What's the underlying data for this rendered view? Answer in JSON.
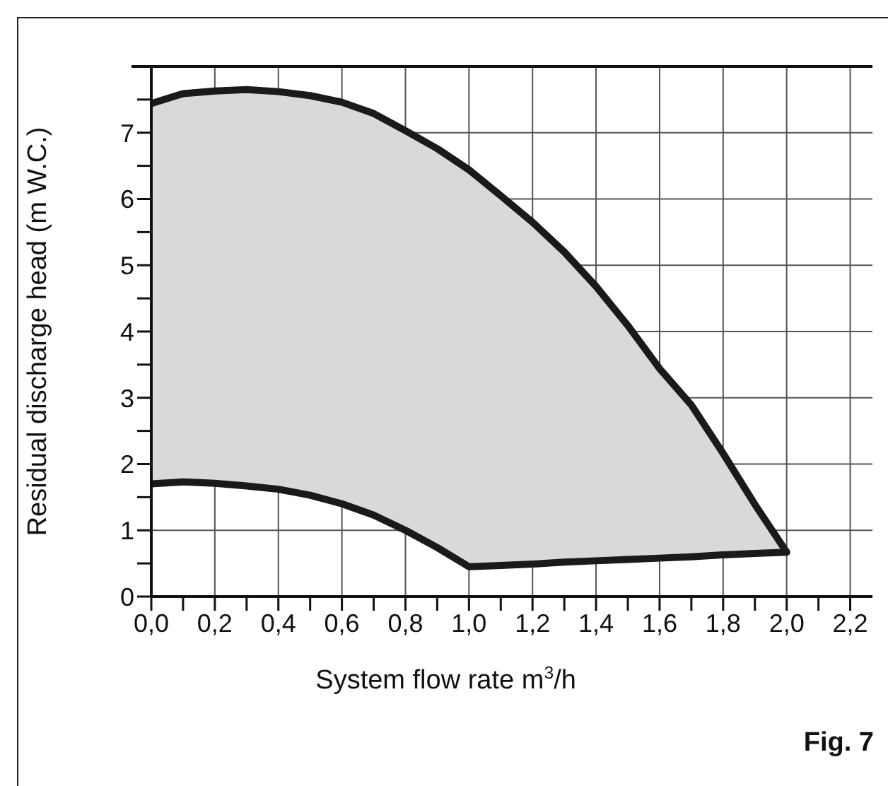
{
  "chart_data": {
    "type": "line",
    "xlabel": "System flow rate m$^{3}$/h",
    "ylabel": "Residual discharge head (m W.C.)",
    "x": [
      0,
      0.1,
      0.2,
      0.3,
      0.4,
      0.5,
      0.6,
      0.7,
      0.8,
      0.9,
      1.0,
      1.1,
      1.2,
      1.3,
      1.4,
      1.5,
      1.6,
      1.7,
      1.8,
      1.9,
      2.0
    ],
    "series": [
      {
        "color": "#1a1a1a",
        "values": [
          7.44,
          7.59,
          7.63,
          7.65,
          7.62,
          7.56,
          7.46,
          7.29,
          7.03,
          6.76,
          6.44,
          6.05,
          5.65,
          5.2,
          4.68,
          4.09,
          3.44,
          2.89,
          2.16,
          1.39,
          0.67
        ],
        "lower": [
          1.7,
          1.73,
          1.71,
          1.67,
          1.62,
          1.53,
          1.4,
          1.23,
          1.0,
          0.74,
          0.45,
          0.47,
          0.49,
          0.52,
          0.54,
          0.56,
          0.58,
          0.6,
          0.63,
          0.65,
          0.67
        ],
        "upper": [
          7.44,
          7.59,
          7.63,
          7.65,
          7.62,
          7.56,
          7.46,
          7.29,
          7.03,
          6.76,
          6.44,
          6.05,
          5.65,
          5.2,
          4.68,
          4.09,
          3.44,
          2.89,
          2.16,
          1.39,
          0.67
        ]
      },
      {
        "color": "#1a1a1a",
        "values": [
          1.7,
          1.73,
          1.71,
          1.67,
          1.62,
          1.53,
          1.4,
          1.23,
          1.0,
          0.74,
          0.45,
          0.47,
          0.49,
          0.52,
          0.54,
          0.56,
          0.58,
          0.6,
          0.63,
          0.65,
          0.67
        ]
      }
    ],
    "xlim": [
      0,
      2.27
    ],
    "xticks": [
      {
        "value": 0,
        "label": "0,0"
      },
      {
        "value": 0.1,
        "label": null
      },
      {
        "value": 0.2,
        "label": "0,2"
      },
      {
        "value": 0.3,
        "label": null
      },
      {
        "value": 0.4,
        "label": "0,4"
      },
      {
        "value": 0.5,
        "label": null
      },
      {
        "value": 0.6,
        "label": "0,6"
      },
      {
        "value": 0.7,
        "label": null
      },
      {
        "value": 0.8,
        "label": "0,8"
      },
      {
        "value": 0.9,
        "label": null
      },
      {
        "value": 1.0,
        "label": "1,0"
      },
      {
        "value": 1.1,
        "label": null
      },
      {
        "value": 1.2,
        "label": "1,2"
      },
      {
        "value": 1.3,
        "label": null
      },
      {
        "value": 1.4,
        "label": "1,4"
      },
      {
        "value": 1.5,
        "label": null
      },
      {
        "value": 1.6,
        "label": "1,6"
      },
      {
        "value": 1.7,
        "label": null
      },
      {
        "value": 1.8,
        "label": "1,8"
      },
      {
        "value": 1.9,
        "label": null
      },
      {
        "value": 2.0,
        "label": "2,0"
      },
      {
        "value": 2.1,
        "label": null
      },
      {
        "value": 2.2,
        "label": "2,2"
      }
    ],
    "ylim": [
      0,
      8
    ],
    "yticks": [
      0,
      {
        "value": 0.5,
        "label": null
      },
      1,
      {
        "value": 1.5,
        "label": null
      },
      2,
      {
        "value": 2.5,
        "label": null
      },
      3,
      {
        "value": 3.5,
        "label": null
      },
      4,
      {
        "value": 4.5,
        "label": null
      },
      5,
      {
        "value": 5.5,
        "label": null
      },
      6,
      {
        "value": 6.5,
        "label": null
      },
      7,
      {
        "value": 7.5,
        "label": null
      },
      {
        "value": 8,
        "label": null
      }
    ],
    "grid": true,
    "marker": "none",
    "line_style": "solid",
    "annotations": [
      "Fig. 7"
    ]
  }
}
